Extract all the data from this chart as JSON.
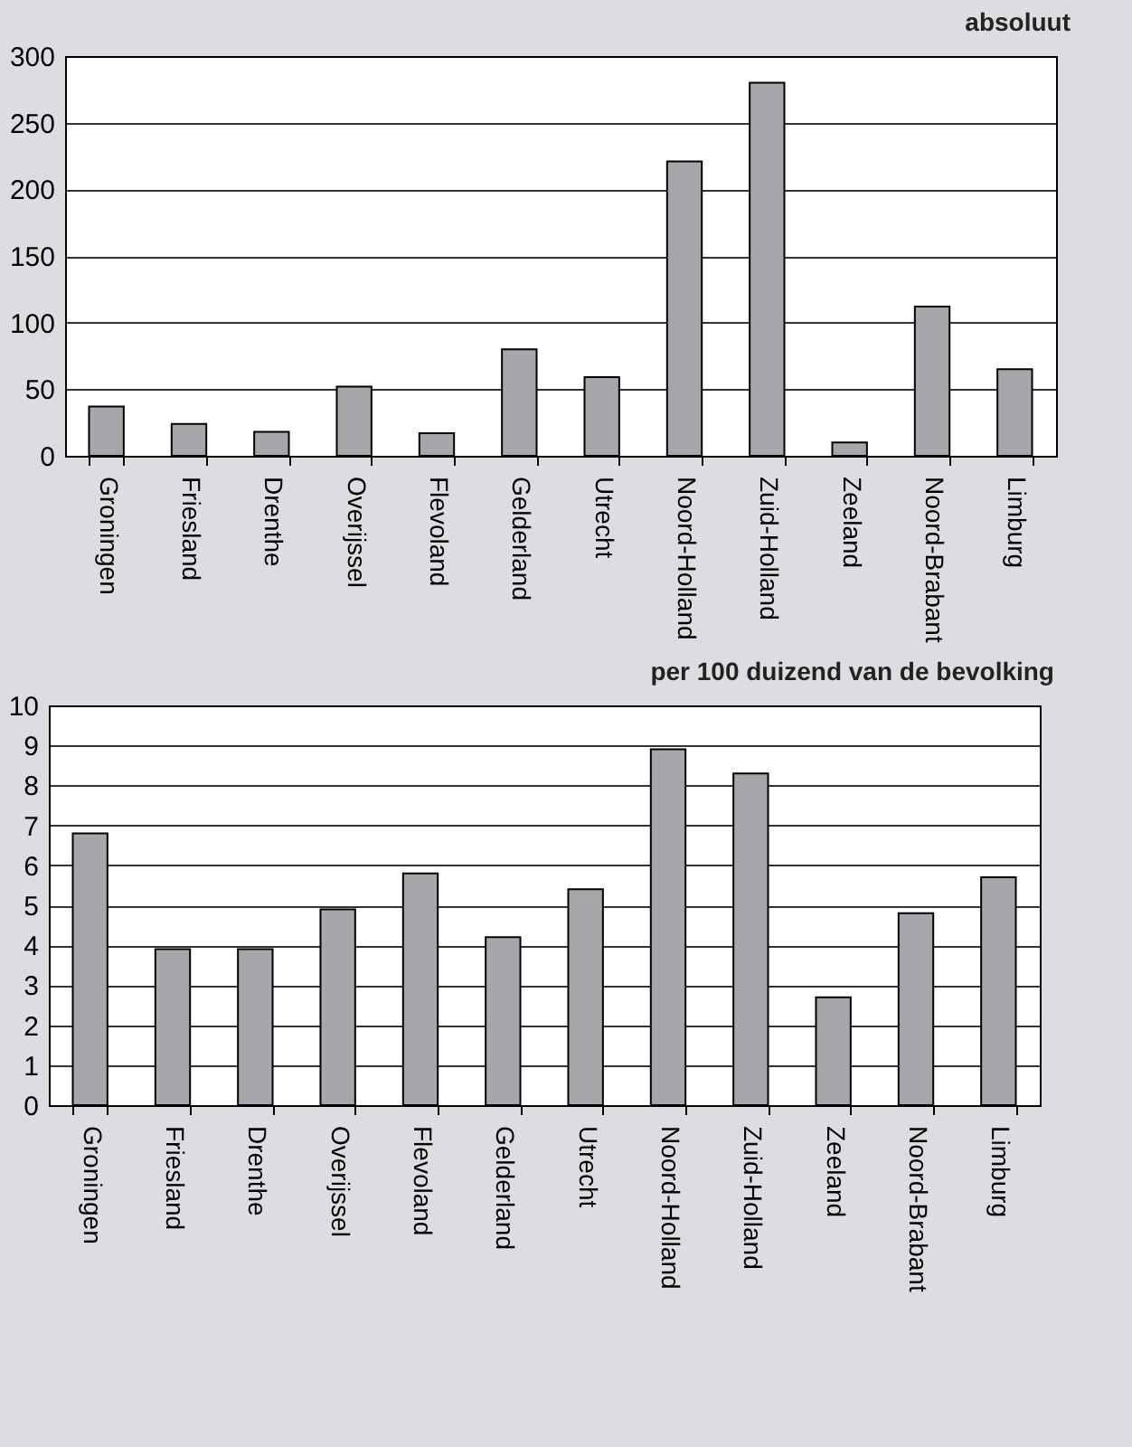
{
  "chart_data": [
    {
      "type": "bar",
      "title": "absoluut",
      "categories": [
        "Groningen",
        "Friesland",
        "Drenthe",
        "Overijssel",
        "Flevoland",
        "Gelderland",
        "Utrecht",
        "Noord-Holland",
        "Zuid-Holland",
        "Zeeland",
        "Noord-Brabant",
        "Limburg"
      ],
      "values": [
        37,
        24,
        18,
        52,
        17,
        80,
        59,
        221,
        280,
        10,
        112,
        65
      ],
      "color": "#a6a7aa",
      "ylim": [
        0,
        300
      ],
      "yticks": [
        0,
        50,
        100,
        150,
        200,
        250,
        300
      ],
      "grid": "y"
    },
    {
      "type": "bar",
      "title": "per 100 duizend van de bevolking",
      "categories": [
        "Groningen",
        "Friesland",
        "Drenthe",
        "Overijssel",
        "Flevoland",
        "Gelderland",
        "Utrecht",
        "Noord-Holland",
        "Zuid-Holland",
        "Zeeland",
        "Noord-Brabant",
        "Limburg"
      ],
      "values": [
        6.8,
        3.9,
        3.9,
        4.9,
        5.8,
        4.2,
        5.4,
        8.9,
        8.3,
        2.7,
        4.8,
        5.7
      ],
      "color": "#a6a7aa",
      "ylim": [
        0,
        10
      ],
      "yticks": [
        0,
        1,
        2,
        3,
        4,
        5,
        6,
        7,
        8,
        9,
        10
      ],
      "grid": "y"
    }
  ]
}
